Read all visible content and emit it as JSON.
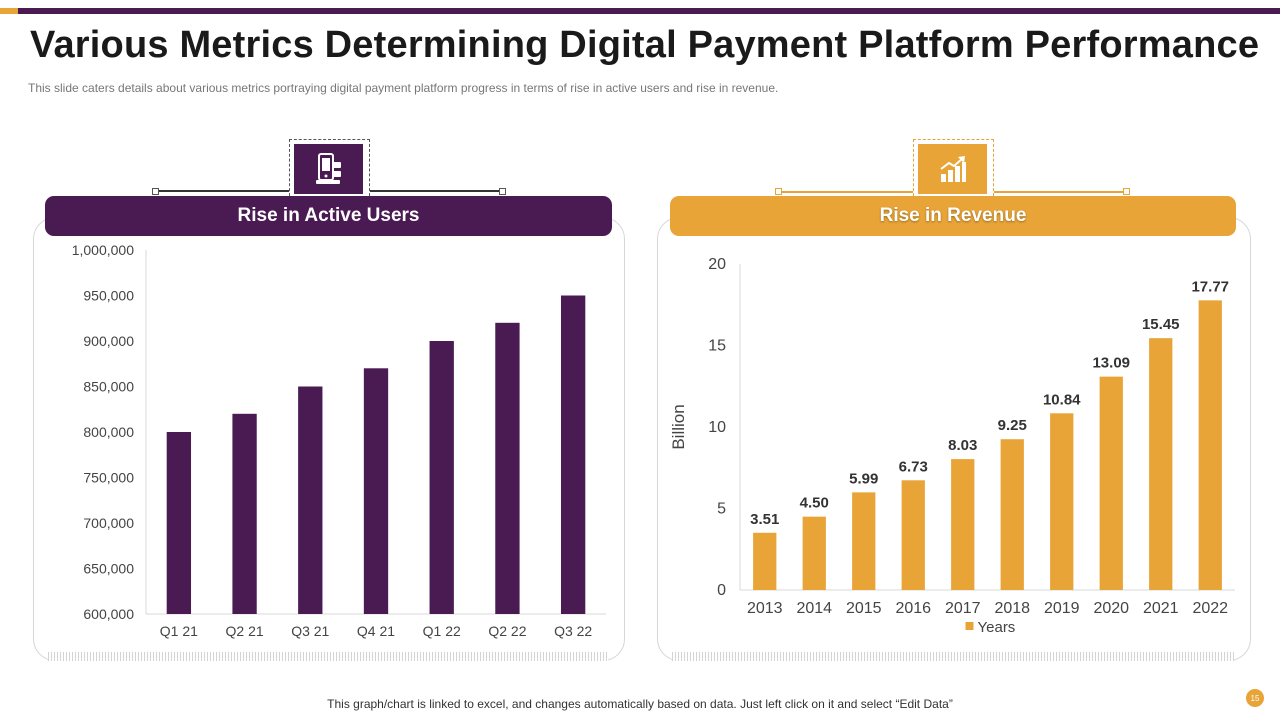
{
  "header": {
    "title": "Various Metrics Determining Digital Payment Platform Performance",
    "subtitle": "This slide caters details about various  metrics portraying digital payment platform progress in terms of rise in active users and rise in revenue."
  },
  "panels": {
    "left": {
      "label": "Rise in Active Users",
      "icon": "mobile-payment-icon"
    },
    "right": {
      "label": "Rise in Revenue",
      "icon": "growth-chart-icon"
    }
  },
  "footer": {
    "note": "This graph/chart is linked to excel,  and changes automatically based on data. Just left click on it and select “Edit Data”",
    "page_number": "15"
  },
  "colors": {
    "purple": "#4a1a52",
    "orange": "#e8a437"
  },
  "chart_data": [
    {
      "type": "bar",
      "title": "Rise in Active Users",
      "categories": [
        "Q1 21",
        "Q2 21",
        "Q3 21",
        "Q4 21",
        "Q1 22",
        "Q2 22",
        "Q3 22"
      ],
      "values": [
        800000,
        820000,
        850000,
        870000,
        900000,
        920000,
        950000
      ],
      "ylim": [
        600000,
        1000000
      ],
      "yticks": [
        "600,000",
        "650,000",
        "700,000",
        "750,000",
        "800,000",
        "850,000",
        "900,000",
        "950,000",
        "1,000,000"
      ],
      "ytick_values": [
        600000,
        650000,
        700000,
        750000,
        800000,
        850000,
        900000,
        950000,
        1000000
      ],
      "xlabel": "",
      "ylabel": "",
      "grid": false,
      "color": "#4a1a52"
    },
    {
      "type": "bar",
      "title": "Rise in Revenue",
      "categories": [
        "2013",
        "2014",
        "2015",
        "2016",
        "2017",
        "2018",
        "2019",
        "2020",
        "2021",
        "2022"
      ],
      "values": [
        3.51,
        4.5,
        5.99,
        6.73,
        8.03,
        9.25,
        10.84,
        13.09,
        15.45,
        17.77
      ],
      "labels": [
        "3.51",
        "4.50",
        "5.99",
        "6.73",
        "8.03",
        "9.25",
        "10.84",
        "13.09",
        "15.45",
        "17.77"
      ],
      "ylim": [
        0,
        20
      ],
      "yticks": [
        "0",
        "5",
        "10",
        "15",
        "20"
      ],
      "ytick_values": [
        0,
        5,
        10,
        15,
        20
      ],
      "xlabel": "",
      "ylabel": "Billion",
      "legend": "Years",
      "legend_position": "bottom",
      "grid": false,
      "color": "#e8a437"
    }
  ]
}
